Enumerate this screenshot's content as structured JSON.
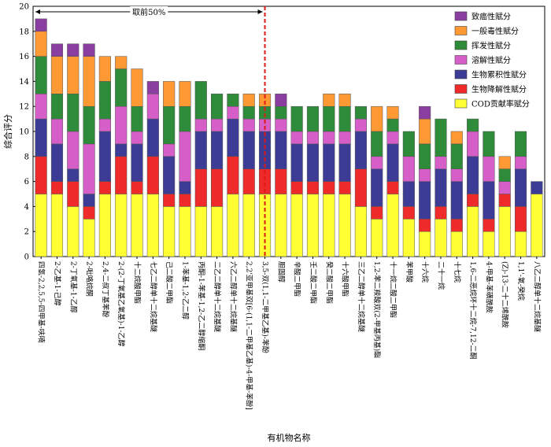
{
  "chart_data": {
    "type": "bar",
    "stacked": true,
    "xlabel": "有机物名称",
    "ylabel": "综合评分",
    "ylim": [
      0,
      20
    ],
    "yticks": [
      0,
      2,
      4,
      6,
      8,
      10,
      12,
      14,
      16,
      18,
      20
    ],
    "grid": false,
    "legend_position": "top-right",
    "annotation": {
      "text": "取前50%",
      "between_categories": [
        13,
        14
      ],
      "style": "red dashed vertical line with double arrow"
    },
    "categories": [
      "四氢-2,2,5,5-四甲基-呋喃",
      "2-乙基-1-己醇",
      "2-丁氧基-1-乙醇",
      "2-吡咯烷酮",
      "2,4-二叔丁基苯酚",
      "2-(2-丁氧基乙氧基)-1-乙醇",
      "十二烷酸甲酯",
      "七乙二醇单十二烷基醚",
      "己二酸二甲酯",
      "1-苯基-1,2-乙二醇",
      "丙酮-1-苯基-1,2-乙二醇缩酮",
      "二乙二醇单十二烷基醚",
      "六乙二醇单十二烷基醚",
      "2,2'亚甲基双[6-(1,1-二甲基乙基)-4-甲基-苯酚]",
      "3,5-双(1,1-二甲基乙基)-苯酚",
      "胆固醇",
      "辛酸二甲酯",
      "壬二酸二甲酯",
      "癸二酸二甲酯",
      "十六酸甲酯",
      "三乙二醇单十二烷基醚",
      "1,2-苯二羧酸双(2-甲基丙基)酯",
      "十一烷二酸二甲酯",
      "苯甲酸",
      "十六烷",
      "二十一烷",
      "十七烷",
      "1,6-二恶烷环十二烷-7,12-二酮",
      "4-甲基-苯磺酰胺",
      "(Z)-13-二十二烯酰胺",
      "1,1'-氧-癸烷",
      "八乙二醇单十二烷基醚"
    ],
    "series": [
      {
        "name": "COD贡献率赋分",
        "color": "#ffff33",
        "values": [
          5,
          5,
          4,
          3,
          5,
          5,
          5,
          5,
          4,
          4,
          4,
          4,
          5,
          5,
          5,
          5,
          5,
          5,
          5,
          5,
          4,
          3,
          5,
          3,
          2,
          3,
          2,
          4,
          2,
          4,
          2,
          5
        ]
      },
      {
        "name": "生物降解性赋分",
        "color": "#ee2a2a",
        "values": [
          3,
          1,
          2,
          1,
          1,
          3,
          1,
          3,
          1,
          1,
          3,
          3,
          3,
          2,
          2,
          2,
          1,
          1,
          1,
          1,
          3,
          1,
          1,
          1,
          1,
          1,
          1,
          1,
          1,
          1,
          2,
          0
        ]
      },
      {
        "name": "生物累积性赋分",
        "color": "#3c3c96",
        "values": [
          3,
          3,
          1,
          1,
          4,
          1,
          3,
          3,
          3,
          1,
          3,
          3,
          3,
          3,
          3,
          3,
          3,
          3,
          3,
          3,
          3,
          3,
          3,
          2,
          3,
          3,
          3,
          3,
          3,
          0,
          3,
          1
        ]
      },
      {
        "name": "溶解性赋分",
        "color": "#d65ec8",
        "values": [
          2,
          2,
          3,
          4,
          1,
          3,
          1,
          2,
          1,
          4,
          1,
          1,
          1,
          1,
          1,
          1,
          1,
          1,
          1,
          1,
          1,
          1,
          1,
          2,
          1,
          1,
          1,
          2,
          2,
          1,
          1,
          0
        ]
      },
      {
        "name": "挥发性赋分",
        "color": "#2e8b3a",
        "values": [
          3,
          2,
          3,
          3,
          3,
          3,
          2,
          0,
          3,
          2,
          3,
          2,
          1,
          1,
          1,
          1,
          2,
          2,
          2,
          2,
          1,
          2,
          1,
          2,
          2,
          3,
          2,
          1,
          2,
          1,
          2,
          0
        ]
      },
      {
        "name": "一般毒性赋分",
        "color": "#ff9933",
        "values": [
          2,
          3,
          3,
          4,
          2,
          1,
          3,
          0,
          2,
          2,
          0,
          0,
          0,
          1,
          1,
          0,
          0,
          0,
          1,
          1,
          0,
          2,
          1,
          0,
          2,
          0,
          1,
          0,
          0,
          1,
          0,
          0
        ]
      },
      {
        "name": "致癌性赋分",
        "color": "#8a3ea0",
        "values": [
          1,
          1,
          1,
          1,
          0,
          0,
          0,
          1,
          0,
          0,
          0,
          0,
          0,
          0,
          0,
          1,
          0,
          0,
          0,
          0,
          0,
          0,
          0,
          0,
          1,
          0,
          0,
          0,
          0,
          0,
          0,
          0
        ]
      }
    ]
  }
}
